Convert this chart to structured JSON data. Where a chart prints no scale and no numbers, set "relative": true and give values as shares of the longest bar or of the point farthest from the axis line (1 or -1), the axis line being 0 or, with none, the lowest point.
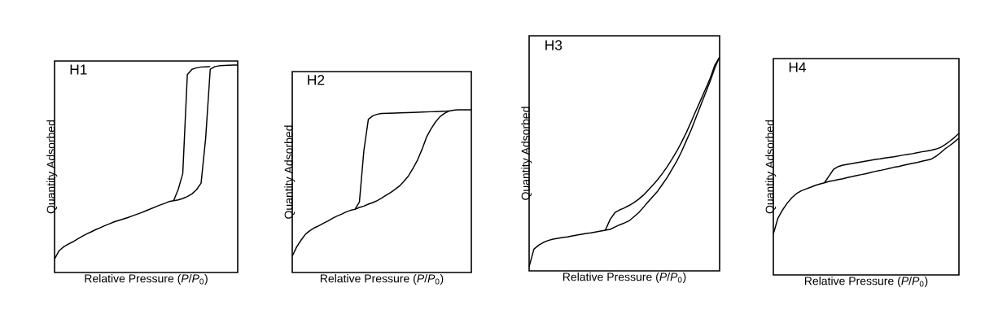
{
  "chart_data": [
    {
      "type": "line",
      "relative": true,
      "title": "H1",
      "xlabel": "Relative Pressure (*P*/*P*$_{0}$)",
      "ylabel": "Quantity Adsorbed",
      "categories": [
        null,
        null,
        null,
        null,
        null,
        null,
        null,
        null,
        null,
        null,
        null,
        null,
        null,
        null,
        null,
        null,
        null,
        null,
        null,
        null,
        null,
        null,
        null,
        null,
        null,
        null,
        null,
        null,
        null,
        null,
        null,
        null,
        null,
        null,
        null,
        null,
        null,
        null,
        null,
        null,
        null
      ],
      "series": [
        {
          "color": "#000000",
          "values": [
            0.065,
            0.105,
            0.124,
            0.137,
            0.148,
            0.161,
            0.174,
            0.186,
            0.196,
            0.207,
            0.216,
            0.226,
            0.235,
            0.244,
            0.251,
            0.258,
            0.265,
            0.273,
            0.281,
            0.289,
            0.298,
            0.307,
            0.316,
            0.325,
            0.333,
            0.342,
            0.346,
            0.35,
            0.357,
            0.366,
            0.379,
            0.399,
            0.431,
            0.647,
            0.98,
            0.993,
            0.997,
            0.998,
            0.999,
            1.0,
            1.0
          ]
        },
        {
          "color": "#000000",
          "values": [
            null,
            null,
            null,
            null,
            null,
            null,
            null,
            null,
            null,
            null,
            null,
            null,
            null,
            null,
            null,
            null,
            null,
            null,
            null,
            null,
            null,
            null,
            null,
            null,
            null,
            null,
            0.346,
            0.4,
            0.477,
            0.954,
            0.98,
            0.987,
            0.991,
            0.992,
            0.993,
            null,
            null,
            null,
            null,
            null,
            null
          ]
        }
      ]
    },
    {
      "type": "line",
      "relative": true,
      "title": "H2",
      "xlabel": "Relative Pressure (*P*/*P*$_{0}$)",
      "ylabel": "Quantity Adsorbed",
      "categories": [
        null,
        null,
        null,
        null,
        null,
        null,
        null,
        null,
        null,
        null,
        null,
        null,
        null,
        null,
        null,
        null,
        null,
        null,
        null,
        null,
        null,
        null,
        null,
        null,
        null,
        null,
        null,
        null,
        null,
        null,
        null,
        null,
        null,
        null,
        null,
        null,
        null,
        null,
        null,
        null,
        null
      ],
      "series": [
        {
          "color": "#000000",
          "values": [
            0.1,
            0.158,
            0.2,
            0.237,
            0.258,
            0.275,
            0.288,
            0.303,
            0.317,
            0.333,
            0.347,
            0.358,
            0.372,
            0.382,
            0.388,
            0.4,
            0.408,
            0.42,
            0.43,
            0.442,
            0.458,
            0.475,
            0.492,
            0.512,
            0.533,
            0.562,
            0.595,
            0.642,
            0.692,
            0.758,
            0.833,
            0.883,
            0.925,
            0.958,
            0.978,
            0.992,
            0.997,
            1.0,
            1.0,
            1.0,
            1.0
          ]
        },
        {
          "color": "#000000",
          "values": [
            null,
            null,
            null,
            null,
            null,
            null,
            null,
            null,
            null,
            null,
            null,
            null,
            null,
            null,
            0.388,
            0.433,
            0.75,
            0.942,
            0.963,
            0.973,
            0.977,
            0.978,
            0.979,
            0.98,
            0.981,
            0.982,
            0.983,
            0.984,
            0.985,
            0.986,
            0.987,
            0.988,
            0.989,
            0.99,
            0.991,
            0.992,
            null,
            null,
            null,
            null,
            null
          ]
        }
      ]
    },
    {
      "type": "line",
      "relative": true,
      "title": "H3",
      "xlabel": "Relative Pressure (*P*/*P*$_{0}$)",
      "ylabel": "Quantity Adsorbed",
      "categories": [
        null,
        null,
        null,
        null,
        null,
        null,
        null,
        null,
        null,
        null,
        null,
        null,
        null,
        null,
        null,
        null,
        null,
        null,
        null,
        null,
        null,
        null,
        null,
        null,
        null,
        null,
        null,
        null,
        null,
        null,
        null,
        null,
        null,
        null,
        null,
        null,
        null,
        null,
        null,
        null,
        null
      ],
      "series": [
        {
          "color": "#000000",
          "values": [
            0.02,
            0.101,
            0.12,
            0.133,
            0.142,
            0.148,
            0.152,
            0.156,
            0.159,
            0.163,
            0.167,
            0.171,
            0.175,
            0.178,
            0.182,
            0.186,
            0.19,
            0.194,
            0.205,
            0.215,
            0.224,
            0.234,
            0.253,
            0.272,
            0.297,
            0.323,
            0.348,
            0.373,
            0.405,
            0.437,
            0.475,
            0.513,
            0.557,
            0.608,
            0.658,
            0.715,
            0.772,
            0.829,
            0.886,
            0.949,
            1.0
          ]
        },
        {
          "color": "#000000",
          "values": [
            null,
            null,
            null,
            null,
            null,
            null,
            null,
            null,
            null,
            null,
            null,
            null,
            null,
            null,
            null,
            null,
            0.19,
            0.24,
            0.272,
            0.285,
            0.294,
            0.306,
            0.319,
            0.335,
            0.354,
            0.377,
            0.401,
            0.427,
            0.456,
            0.487,
            0.522,
            0.559,
            0.601,
            0.646,
            0.696,
            0.747,
            0.797,
            0.848,
            0.899,
            0.962,
            1.0
          ]
        }
      ]
    },
    {
      "type": "line",
      "relative": true,
      "title": "H4",
      "xlabel": "Relative Pressure (*P*/*P*$_{0}$)",
      "ylabel": "Quantity Adsorbed",
      "categories": [
        null,
        null,
        null,
        null,
        null,
        null,
        null,
        null,
        null,
        null,
        null,
        null,
        null,
        null,
        null,
        null,
        null,
        null,
        null,
        null,
        null,
        null,
        null,
        null,
        null,
        null,
        null,
        null,
        null,
        null,
        null,
        null,
        null,
        null,
        null,
        null,
        null,
        null,
        null,
        null,
        null
      ],
      "series": [
        {
          "color": "#000000",
          "values": [
            0.29,
            0.402,
            0.46,
            0.508,
            0.546,
            0.575,
            0.594,
            0.607,
            0.619,
            0.632,
            0.642,
            0.651,
            0.661,
            0.667,
            0.674,
            0.68,
            0.688,
            0.695,
            0.703,
            0.709,
            0.716,
            0.724,
            0.732,
            0.738,
            0.745,
            0.753,
            0.761,
            0.766,
            0.774,
            0.782,
            0.789,
            0.795,
            0.803,
            0.81,
            0.818,
            0.837,
            0.862,
            0.891,
            0.914,
            0.939,
            0.967
          ]
        },
        {
          "color": "#000000",
          "values": [
            null,
            null,
            null,
            null,
            null,
            null,
            null,
            null,
            null,
            null,
            null,
            0.651,
            0.699,
            0.747,
            0.766,
            0.776,
            0.782,
            0.787,
            0.793,
            0.799,
            0.805,
            0.81,
            0.816,
            0.82,
            0.826,
            0.831,
            0.835,
            0.841,
            0.847,
            0.852,
            0.857,
            0.864,
            0.87,
            0.875,
            0.881,
            0.889,
            0.9,
            0.92,
            0.944,
            0.971,
            1.0
          ]
        }
      ]
    }
  ]
}
